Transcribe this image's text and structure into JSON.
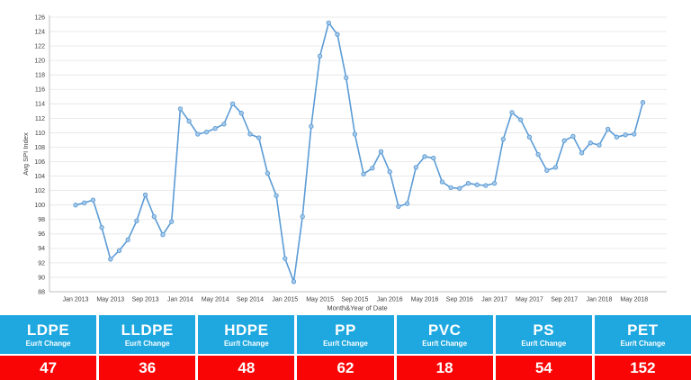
{
  "chart_data": {
    "type": "line",
    "title": "",
    "xlabel": "Month&Year of Date",
    "ylabel": "Avg SPI Index",
    "ylim": [
      88,
      126
    ],
    "ytick_step": 2,
    "grid": "horizontal",
    "legend": "none",
    "x_start": "Jan 2013",
    "x_tick_labels": [
      "Jan 2013",
      "May 2013",
      "Sep 2013",
      "Jan 2014",
      "May 2014",
      "Sep 2014",
      "Jan 2015",
      "May 2015",
      "Sep 2015",
      "Jan 2016",
      "May 2016",
      "Sep 2016",
      "Jan 2017",
      "May 2017",
      "Sep 2017",
      "Jan 2018",
      "May 2018"
    ],
    "x_tick_every": 4,
    "values": [
      100.0,
      100.3,
      100.7,
      96.9,
      92.5,
      93.7,
      95.2,
      97.8,
      101.4,
      98.4,
      95.9,
      97.7,
      113.3,
      111.6,
      109.8,
      110.1,
      110.6,
      111.2,
      114.0,
      112.7,
      109.8,
      109.3,
      104.4,
      101.3,
      92.6,
      89.4,
      98.4,
      110.9,
      120.6,
      125.2,
      123.6,
      117.6,
      109.8,
      104.3,
      105.1,
      107.4,
      104.6,
      99.8,
      100.2,
      105.2,
      106.7,
      106.5,
      103.2,
      102.4,
      102.3,
      103.0,
      102.8,
      102.7,
      103.0,
      109.1,
      112.8,
      111.8,
      109.4,
      107.0,
      104.8,
      105.2,
      108.9,
      109.5,
      107.2,
      108.6,
      108.3,
      110.5,
      109.4,
      109.7,
      109.8,
      114.2
    ],
    "colors": {
      "line": "#5B9BD5",
      "marker_fill": "#A9CBEA",
      "marker_stroke": "#5B9BD5",
      "gridline": "#E4E4E4",
      "axis": "#BFBFBF",
      "tick_text": "#404040"
    }
  },
  "table": {
    "change_label": "Eur/t Change",
    "colors": {
      "header_bg": "#1FA8E0",
      "value_bg": "#FA0505",
      "text": "#FFFFFF"
    },
    "columns": [
      {
        "name": "LDPE",
        "change": "47"
      },
      {
        "name": "LLDPE",
        "change": "36"
      },
      {
        "name": "HDPE",
        "change": "48"
      },
      {
        "name": "PP",
        "change": "62"
      },
      {
        "name": "PVC",
        "change": "18"
      },
      {
        "name": "PS",
        "change": "54"
      },
      {
        "name": "PET",
        "change": "152"
      }
    ]
  }
}
